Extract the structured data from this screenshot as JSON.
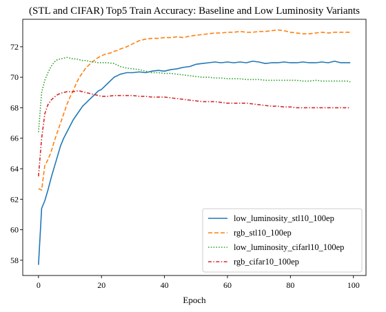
{
  "chart_data": {
    "type": "line",
    "title": "(STL and CIFAR) Top5 Train Accuracy: Baseline and Low Luminosity Variants",
    "xlabel": "Epoch",
    "ylabel": "",
    "xlim": [
      -5,
      104
    ],
    "ylim": [
      57,
      73.8
    ],
    "xticks": [
      0,
      20,
      40,
      60,
      80,
      100
    ],
    "yticks": [
      58,
      60,
      62,
      64,
      66,
      68,
      70,
      72
    ],
    "grid": false,
    "legend_position": "lower-right",
    "series": [
      {
        "name": "low_luminosity_stl10_100ep",
        "color": "#1f77b4",
        "dash": "solid",
        "x": [
          0,
          1,
          2,
          3,
          4,
          5,
          6,
          7,
          8,
          9,
          10,
          11,
          12,
          13,
          14,
          15,
          16,
          17,
          18,
          19,
          20,
          21,
          22,
          23,
          24,
          25,
          26,
          27,
          28,
          29,
          30,
          32,
          34,
          36,
          38,
          40,
          42,
          44,
          46,
          48,
          50,
          52,
          54,
          56,
          58,
          60,
          62,
          64,
          66,
          68,
          70,
          72,
          74,
          76,
          78,
          80,
          82,
          84,
          86,
          88,
          90,
          92,
          94,
          96,
          98,
          99
        ],
        "y": [
          57.7,
          61.4,
          61.9,
          62.6,
          63.4,
          64.1,
          64.8,
          65.5,
          66.0,
          66.4,
          66.8,
          67.2,
          67.5,
          67.8,
          68.1,
          68.3,
          68.5,
          68.7,
          68.9,
          69.1,
          69.2,
          69.4,
          69.6,
          69.8,
          70.0,
          70.1,
          70.2,
          70.25,
          70.3,
          70.3,
          70.3,
          70.35,
          70.3,
          70.4,
          70.45,
          70.4,
          70.5,
          70.55,
          70.65,
          70.7,
          70.85,
          70.9,
          70.95,
          71.0,
          70.95,
          71.0,
          70.95,
          71.0,
          70.95,
          71.05,
          71.0,
          70.9,
          70.95,
          70.95,
          71.0,
          70.95,
          70.95,
          71.0,
          70.95,
          70.95,
          71.0,
          70.95,
          71.05,
          70.95,
          70.95,
          70.95
        ]
      },
      {
        "name": "rgb_stl10_100ep",
        "color": "#ff7f0e",
        "dash": "dashed",
        "x": [
          0,
          1,
          2,
          3,
          4,
          5,
          6,
          7,
          8,
          9,
          10,
          11,
          12,
          13,
          14,
          15,
          16,
          17,
          18,
          19,
          20,
          21,
          22,
          23,
          24,
          25,
          26,
          28,
          30,
          32,
          34,
          36,
          38,
          40,
          42,
          44,
          46,
          48,
          50,
          52,
          54,
          56,
          58,
          60,
          62,
          64,
          66,
          68,
          70,
          72,
          74,
          76,
          78,
          80,
          82,
          84,
          86,
          88,
          90,
          92,
          94,
          96,
          98,
          99
        ],
        "y": [
          62.7,
          62.6,
          64.2,
          64.6,
          65.1,
          65.8,
          66.4,
          67.0,
          67.6,
          68.2,
          68.7,
          69.1,
          69.6,
          70.0,
          70.3,
          70.6,
          70.8,
          71.0,
          71.15,
          71.3,
          71.4,
          71.5,
          71.55,
          71.6,
          71.7,
          71.75,
          71.85,
          72.0,
          72.2,
          72.4,
          72.5,
          72.55,
          72.55,
          72.6,
          72.6,
          72.65,
          72.6,
          72.7,
          72.75,
          72.8,
          72.85,
          72.9,
          72.9,
          72.95,
          72.95,
          73.0,
          72.95,
          72.95,
          73.0,
          73.0,
          73.05,
          73.1,
          73.05,
          72.95,
          72.9,
          72.85,
          72.85,
          72.9,
          72.95,
          72.9,
          72.95,
          72.95,
          72.95,
          72.95
        ]
      },
      {
        "name": "low_luminosity_cifarl10_100ep",
        "color": "#2ca02c",
        "dash": "dotted",
        "x": [
          0,
          1,
          2,
          3,
          4,
          5,
          6,
          7,
          8,
          9,
          10,
          11,
          12,
          13,
          14,
          15,
          16,
          17,
          18,
          19,
          20,
          22,
          24,
          26,
          28,
          30,
          32,
          34,
          36,
          38,
          40,
          42,
          44,
          46,
          48,
          50,
          52,
          54,
          56,
          58,
          60,
          62,
          64,
          66,
          68,
          70,
          72,
          74,
          76,
          78,
          80,
          82,
          84,
          86,
          88,
          90,
          92,
          94,
          96,
          98,
          99
        ],
        "y": [
          66.4,
          69.0,
          69.8,
          70.3,
          70.7,
          71.0,
          71.15,
          71.2,
          71.25,
          71.3,
          71.25,
          71.2,
          71.2,
          71.15,
          71.1,
          71.1,
          71.05,
          71.0,
          71.0,
          70.95,
          70.95,
          70.95,
          70.9,
          70.7,
          70.6,
          70.55,
          70.5,
          70.4,
          70.3,
          70.3,
          70.25,
          70.25,
          70.2,
          70.15,
          70.1,
          70.05,
          70.0,
          70.0,
          69.95,
          69.95,
          69.9,
          69.9,
          69.9,
          69.85,
          69.85,
          69.85,
          69.8,
          69.8,
          69.8,
          69.8,
          69.8,
          69.8,
          69.75,
          69.75,
          69.8,
          69.75,
          69.75,
          69.75,
          69.75,
          69.75,
          69.7
        ]
      },
      {
        "name": "rgb_cifar10_100ep",
        "color": "#d62728",
        "dash": "dashdot",
        "x": [
          0,
          1,
          2,
          3,
          4,
          5,
          6,
          7,
          8,
          9,
          10,
          11,
          12,
          13,
          14,
          15,
          16,
          17,
          18,
          19,
          20,
          22,
          24,
          26,
          28,
          30,
          32,
          34,
          36,
          38,
          40,
          42,
          44,
          46,
          48,
          50,
          52,
          54,
          56,
          58,
          60,
          62,
          64,
          66,
          68,
          70,
          72,
          74,
          76,
          78,
          80,
          82,
          84,
          86,
          88,
          90,
          92,
          94,
          96,
          98,
          99
        ],
        "y": [
          63.5,
          66.0,
          67.6,
          68.2,
          68.5,
          68.7,
          68.85,
          68.95,
          69.0,
          69.05,
          69.05,
          69.05,
          69.1,
          69.1,
          69.05,
          69.0,
          68.95,
          68.9,
          68.85,
          68.8,
          68.75,
          68.75,
          68.8,
          68.8,
          68.8,
          68.8,
          68.75,
          68.75,
          68.7,
          68.7,
          68.7,
          68.65,
          68.6,
          68.55,
          68.5,
          68.45,
          68.4,
          68.4,
          68.4,
          68.35,
          68.3,
          68.3,
          68.3,
          68.3,
          68.25,
          68.2,
          68.15,
          68.1,
          68.1,
          68.05,
          68.05,
          68.0,
          68.0,
          68.0,
          68.0,
          68.0,
          68.0,
          68.0,
          68.0,
          68.0,
          68.0
        ]
      }
    ]
  }
}
